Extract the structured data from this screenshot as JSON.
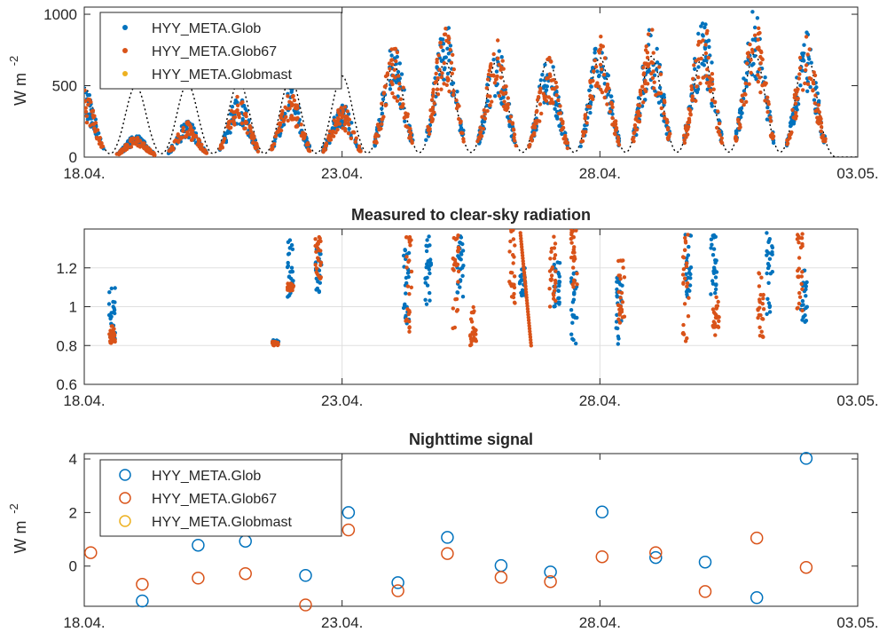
{
  "chart_data": [
    {
      "type": "scatter",
      "title": "",
      "xlabel": "",
      "ylabel": "W m",
      "ylabel_exponent": "-2",
      "x_type": "date",
      "xlim": [
        "2000-04-18",
        "2000-05-03"
      ],
      "x_ticks": [
        "18.04.",
        "23.04.",
        "28.04.",
        "03.05."
      ],
      "ylim": [
        0,
        1050
      ],
      "y_ticks": [
        "0",
        "500",
        "1000"
      ],
      "grid": false,
      "legend_position": "top-left",
      "series": [
        {
          "name": "HYY_META.Glob",
          "color": "#0072BD",
          "marker": "dot"
        },
        {
          "name": "HYY_META.Glob67",
          "color": "#D95319",
          "marker": "dot"
        },
        {
          "name": "HYY_META.Globmast",
          "color": "#EDB120",
          "marker": "dot"
        }
      ],
      "clear_sky_reference": {
        "style": "dotted",
        "color": "#000000"
      },
      "daily_peaks": [
        {
          "date": "2000-04-18",
          "clear_sky": 500,
          "glob": 480,
          "glob67": 460
        },
        {
          "date": "2000-04-19",
          "clear_sky": 510,
          "glob": 150,
          "glob67": 140
        },
        {
          "date": "2000-04-20",
          "clear_sky": 525,
          "glob": 250,
          "glob67": 240
        },
        {
          "date": "2000-04-21",
          "clear_sky": 540,
          "glob": 430,
          "glob67": 420
        },
        {
          "date": "2000-04-22",
          "clear_sky": 560,
          "glob": 470,
          "glob67": 440
        },
        {
          "date": "2000-04-23",
          "clear_sky": 580,
          "glob": 380,
          "glob67": 360
        },
        {
          "date": "2000-04-24",
          "clear_sky": 660,
          "glob": 800,
          "glob67": 770
        },
        {
          "date": "2000-04-25",
          "clear_sky": 680,
          "glob": 950,
          "glob67": 920
        },
        {
          "date": "2000-04-26",
          "clear_sky": 690,
          "glob": 780,
          "glob67": 800
        },
        {
          "date": "2000-04-27",
          "clear_sky": 700,
          "glob": 700,
          "glob67": 680
        },
        {
          "date": "2000-04-28",
          "clear_sky": 710,
          "glob": 860,
          "glob67": 840
        },
        {
          "date": "2000-04-29",
          "clear_sky": 720,
          "glob": 900,
          "glob67": 880
        },
        {
          "date": "2000-04-30",
          "clear_sky": 730,
          "glob": 960,
          "glob67": 940
        },
        {
          "date": "2000-05-01",
          "clear_sky": 740,
          "glob": 1010,
          "glob67": 980
        },
        {
          "date": "2000-05-02",
          "clear_sky": 750,
          "glob": 850,
          "glob67": 820
        }
      ]
    },
    {
      "type": "scatter",
      "title": "Measured to clear-sky radiation",
      "xlabel": "",
      "ylabel": "",
      "x_type": "date",
      "xlim": [
        "2000-04-18",
        "2000-05-03"
      ],
      "x_ticks": [
        "18.04.",
        "23.04.",
        "28.04.",
        "03.05."
      ],
      "ylim": [
        0.6,
        1.4
      ],
      "y_ticks": [
        "0.6",
        "0.8",
        "1",
        "1.2"
      ],
      "grid": true,
      "series": [
        {
          "name": "HYY_META.Glob",
          "color": "#0072BD",
          "clusters": [
            {
              "x": "2000-04-18 13:00",
              "y_min": 0.82,
              "y_max": 1.1
            },
            {
              "x": "2000-04-21 17:00",
              "y_min": 0.81,
              "y_max": 0.83
            },
            {
              "x": "2000-04-22 00:00",
              "y_min": 1.05,
              "y_max": 1.36
            },
            {
              "x": "2000-04-22 13:00",
              "y_min": 1.07,
              "y_max": 1.33
            },
            {
              "x": "2000-04-24 06:00",
              "y_min": 0.9,
              "y_max": 1.3
            },
            {
              "x": "2000-04-24 16:00",
              "y_min": 1.0,
              "y_max": 1.38
            },
            {
              "x": "2000-04-25 07:00",
              "y_min": 1.05,
              "y_max": 1.38
            },
            {
              "x": "2000-04-26 12:00",
              "y_min": 1.05,
              "y_max": 1.2
            },
            {
              "x": "2000-04-27 04:00",
              "y_min": 1.0,
              "y_max": 1.25
            },
            {
              "x": "2000-04-27 12:00",
              "y_min": 0.8,
              "y_max": 1.2
            },
            {
              "x": "2000-04-28 09:00",
              "y_min": 0.8,
              "y_max": 1.15
            },
            {
              "x": "2000-04-29 17:00",
              "y_min": 1.05,
              "y_max": 1.38
            },
            {
              "x": "2000-04-30 05:00",
              "y_min": 1.05,
              "y_max": 1.38
            },
            {
              "x": "2000-05-01 07:00",
              "y_min": 0.95,
              "y_max": 1.38
            },
            {
              "x": "2000-05-01 23:00",
              "y_min": 0.92,
              "y_max": 1.2
            }
          ]
        },
        {
          "name": "HYY_META.Glob67",
          "color": "#D95319",
          "clusters": [
            {
              "x": "2000-04-18 13:00",
              "y_min": 0.81,
              "y_max": 0.9
            },
            {
              "x": "2000-04-21 17:00",
              "y_min": 0.8,
              "y_max": 0.82
            },
            {
              "x": "2000-04-22 00:00",
              "y_min": 1.08,
              "y_max": 1.12
            },
            {
              "x": "2000-04-22 13:00",
              "y_min": 1.14,
              "y_max": 1.36
            },
            {
              "x": "2000-04-24 07:00",
              "y_min": 0.85,
              "y_max": 1.4
            },
            {
              "x": "2000-04-25 05:00",
              "y_min": 0.85,
              "y_max": 1.4
            },
            {
              "x": "2000-04-25 13:00",
              "y_min": 0.8,
              "y_max": 1.0
            },
            {
              "x": "2000-04-26 07:00",
              "y_min": 1.0,
              "y_max": 1.4
            },
            {
              "x": "2000-04-27 02:00",
              "y_min": 1.0,
              "y_max": 1.4
            },
            {
              "x": "2000-04-27 12:00",
              "y_min": 1.1,
              "y_max": 1.4
            },
            {
              "x": "2000-04-28 10:00",
              "y_min": 0.9,
              "y_max": 1.25
            },
            {
              "x": "2000-04-29 16:00",
              "y_min": 0.8,
              "y_max": 1.38
            },
            {
              "x": "2000-04-30 06:00",
              "y_min": 0.85,
              "y_max": 1.05
            },
            {
              "x": "2000-05-01 03:00",
              "y_min": 0.82,
              "y_max": 1.2
            },
            {
              "x": "2000-05-01 21:00",
              "y_min": 0.95,
              "y_max": 1.38
            }
          ],
          "trend": {
            "from": {
              "x": "2000-04-26 11:00",
              "y": 1.38
            },
            "to": {
              "x": "2000-04-26 16:00",
              "y": 0.8
            }
          }
        }
      ]
    },
    {
      "type": "scatter",
      "title": "Nighttime signal",
      "xlabel": "",
      "ylabel": "W m",
      "ylabel_exponent": "-2",
      "x_type": "date",
      "xlim": [
        "2000-04-18",
        "2000-05-03"
      ],
      "x_ticks": [
        "18.04.",
        "23.04.",
        "28.04.",
        "03.05."
      ],
      "ylim": [
        -1.5,
        4.2
      ],
      "y_ticks": [
        "0",
        "2",
        "4"
      ],
      "grid": false,
      "legend_position": "top-left",
      "series": [
        {
          "name": "HYY_META.Glob",
          "color": "#0072BD",
          "marker": "circle",
          "points": [
            {
              "x": "2000-04-19 03:00",
              "y": -1.3
            },
            {
              "x": "2000-04-20 05:00",
              "y": 0.78
            },
            {
              "x": "2000-04-21 03:00",
              "y": 0.93
            },
            {
              "x": "2000-04-22 07:00",
              "y": -0.35
            },
            {
              "x": "2000-04-23 03:00",
              "y": 2.0
            },
            {
              "x": "2000-04-24 02:00",
              "y": -0.62
            },
            {
              "x": "2000-04-25 01:00",
              "y": 1.07
            },
            {
              "x": "2000-04-26 02:00",
              "y": 0.02
            },
            {
              "x": "2000-04-27 01:00",
              "y": -0.22
            },
            {
              "x": "2000-04-28 01:00",
              "y": 2.02
            },
            {
              "x": "2000-04-29 02:00",
              "y": 0.32
            },
            {
              "x": "2000-04-30 01:00",
              "y": 0.15
            },
            {
              "x": "2000-05-01 01:00",
              "y": -1.18
            },
            {
              "x": "2000-05-02 00:00",
              "y": 4.02
            }
          ]
        },
        {
          "name": "HYY_META.Glob67",
          "color": "#D95319",
          "marker": "circle",
          "points": [
            {
              "x": "2000-04-18 03:00",
              "y": 0.5
            },
            {
              "x": "2000-04-19 03:00",
              "y": -0.68
            },
            {
              "x": "2000-04-20 05:00",
              "y": -0.45
            },
            {
              "x": "2000-04-21 03:00",
              "y": -0.28
            },
            {
              "x": "2000-04-22 07:00",
              "y": -1.45
            },
            {
              "x": "2000-04-23 03:00",
              "y": 1.35
            },
            {
              "x": "2000-04-24 02:00",
              "y": -0.92
            },
            {
              "x": "2000-04-25 01:00",
              "y": 0.47
            },
            {
              "x": "2000-04-26 02:00",
              "y": -0.42
            },
            {
              "x": "2000-04-27 01:00",
              "y": -0.58
            },
            {
              "x": "2000-04-28 01:00",
              "y": 0.35
            },
            {
              "x": "2000-04-29 02:00",
              "y": 0.5
            },
            {
              "x": "2000-04-30 01:00",
              "y": -0.95
            },
            {
              "x": "2000-05-01 01:00",
              "y": 1.05
            },
            {
              "x": "2000-05-02 00:00",
              "y": -0.05
            }
          ]
        },
        {
          "name": "HYY_META.Globmast",
          "color": "#EDB120",
          "marker": "circle",
          "points": []
        }
      ]
    }
  ]
}
